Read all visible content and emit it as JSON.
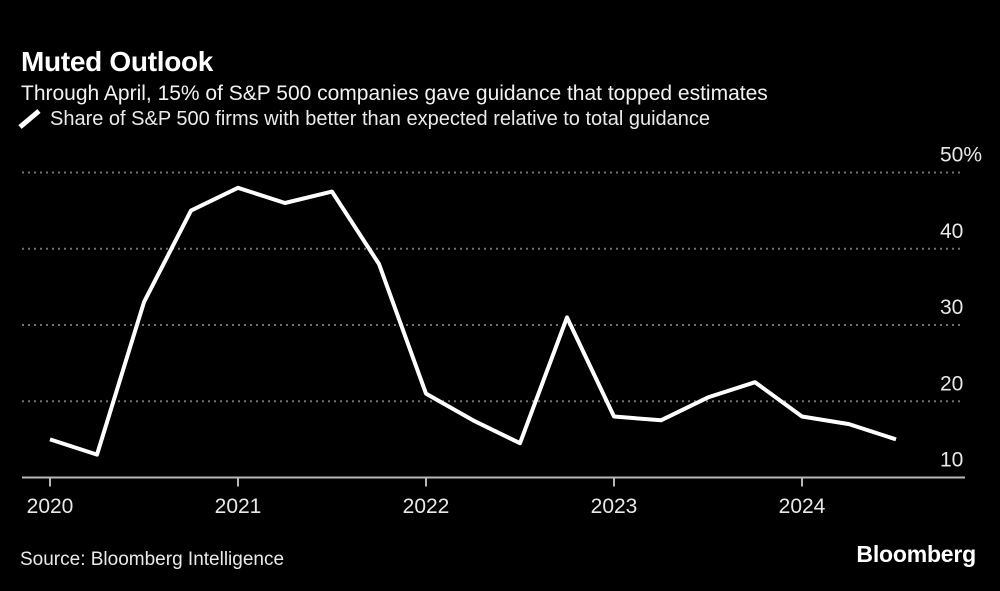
{
  "header": {
    "title": "Muted Outlook",
    "subtitle": "Through April, 15% of S&P 500 companies gave guidance that topped estimates"
  },
  "legend": {
    "marker": "white-slash-line-sample-icon",
    "label": "Share of S&P 500 firms with better than expected relative to total guidance"
  },
  "footer": {
    "source": "Source: Bloomberg Intelligence",
    "brand": "Bloomberg"
  },
  "colors": {
    "background": "#000000",
    "title_text": "#ffffff",
    "body_text": "#eaeaea",
    "series_line": "#ffffff",
    "gridline": "#6f6f6f",
    "axis_line": "#b9b9b9",
    "tick_label": "#e8e8e8"
  },
  "chart_data": {
    "type": "line",
    "title": "Muted Outlook",
    "subtitle": "Through April, 15% of S&P 500 companies gave guidance that topped estimates",
    "xlabel": "",
    "ylabel": "",
    "ylim": [
      10,
      50
    ],
    "xlim": [
      2020,
      2024.85
    ],
    "grid": "horizontal dotted gridlines, solid baseline at 10",
    "legend_position": "top-left",
    "y_ticks": {
      "values": [
        50,
        40,
        30,
        20,
        10
      ],
      "labels": [
        "50%",
        "40",
        "30",
        "20",
        "10"
      ]
    },
    "x_ticks": {
      "values": [
        2020,
        2021,
        2022,
        2023,
        2024
      ],
      "labels": [
        "2020",
        "2021",
        "2022",
        "2023",
        "2024"
      ]
    },
    "series": [
      {
        "name": "Share of S&P 500 firms with better than expected relative to total guidance",
        "color": "#ffffff",
        "periods": [
          "Q1 2020",
          "Q2 2020",
          "Q3 2020",
          "Q4 2020",
          "Q1 2021",
          "Q2 2021",
          "Q3 2021",
          "Q4 2021",
          "Q1 2022",
          "Q2 2022",
          "Q3 2022",
          "Q4 2022",
          "Q1 2023",
          "Q2 2023",
          "Q3 2023",
          "Q4 2023",
          "Q1 2024",
          "Q2 2024",
          "Q3 2024"
        ],
        "x": [
          2020.0,
          2020.25,
          2020.5,
          2020.75,
          2021.0,
          2021.25,
          2021.5,
          2021.75,
          2022.0,
          2022.25,
          2022.5,
          2022.75,
          2023.0,
          2023.25,
          2023.5,
          2023.75,
          2024.0,
          2024.25,
          2024.5
        ],
        "values": [
          15,
          13,
          33,
          45,
          48,
          46,
          47.5,
          38,
          21,
          17.5,
          14.5,
          31,
          18,
          17.5,
          20.5,
          22.5,
          18,
          17,
          15
        ]
      }
    ]
  }
}
